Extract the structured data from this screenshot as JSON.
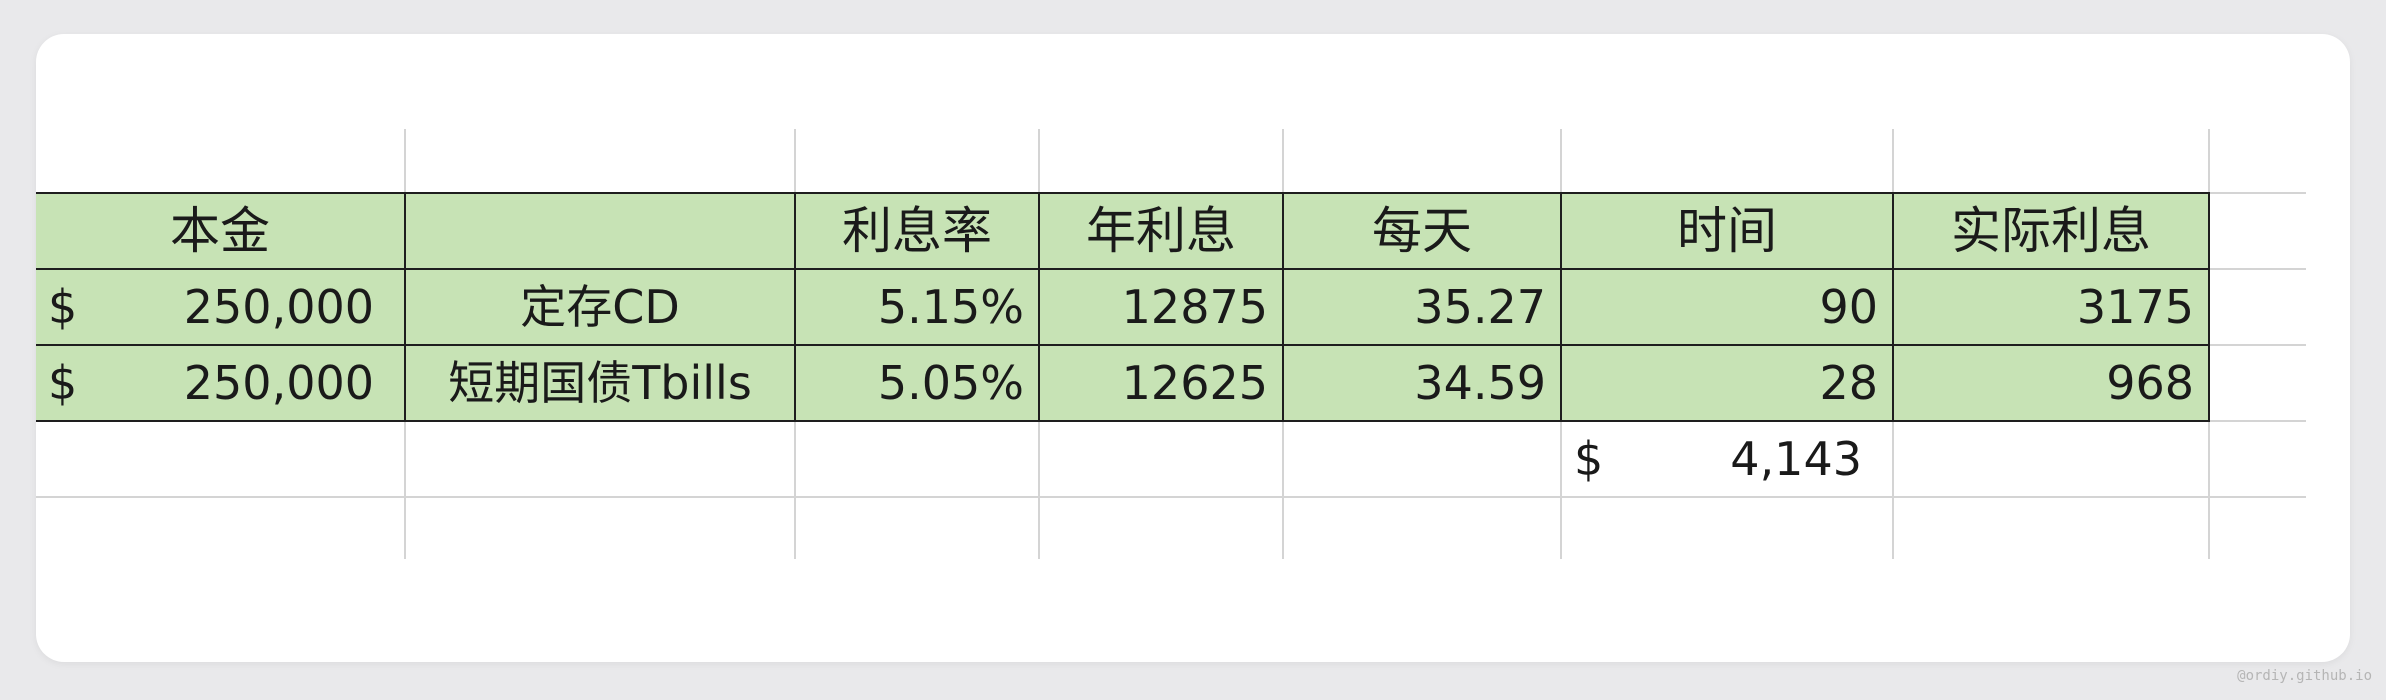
{
  "sheet": {
    "header": {
      "principal": "本金",
      "product": "",
      "rate": "利息率",
      "annual_interest": "年利息",
      "daily": "每天",
      "days": "时间",
      "actual_interest": "实际利息"
    },
    "rows": [
      {
        "currency": "$",
        "principal": "250,000",
        "product": "定存CD",
        "rate": "5.15%",
        "annual_interest": "12875",
        "daily": "35.27",
        "days": "90",
        "actual_interest": "3175"
      },
      {
        "currency": "$",
        "principal": "250,000",
        "product": "短期国债Tbills",
        "rate": "5.05%",
        "annual_interest": "12625",
        "daily": "34.59",
        "days": "28",
        "actual_interest": "968"
      }
    ],
    "total": {
      "currency": "$",
      "value": "4,143"
    }
  },
  "watermark": "@ordiy.github.io",
  "colors": {
    "header_fill": "#c7e3b5",
    "border": "#1e1e1e",
    "gridline": "#d4d4d4",
    "background": "#e9e9eb"
  }
}
